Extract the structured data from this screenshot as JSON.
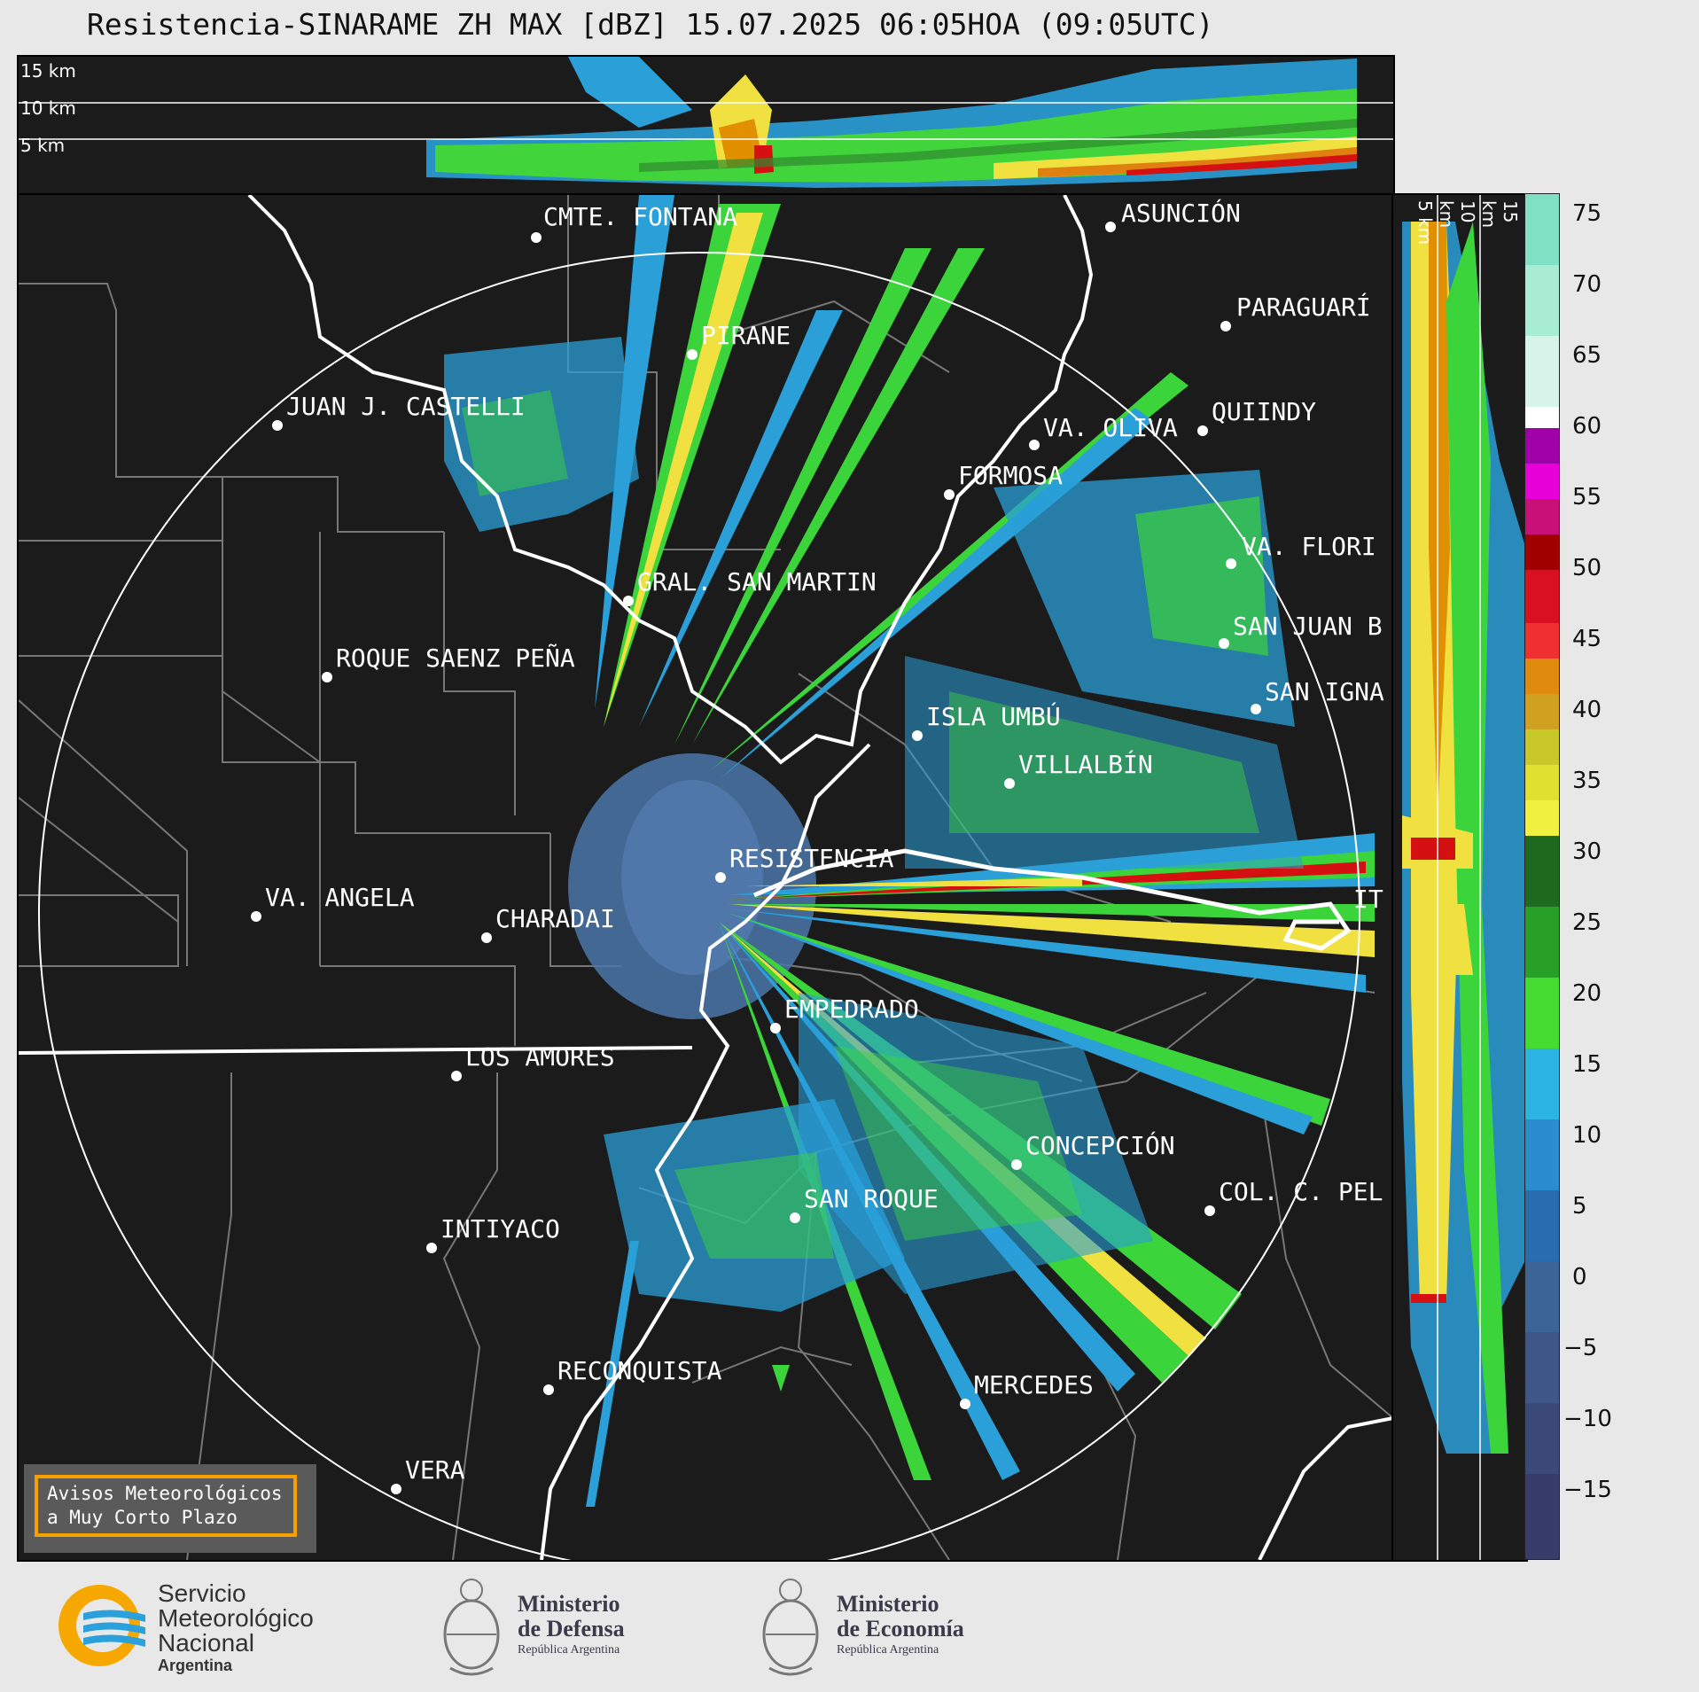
{
  "title": "Resistencia-SINARAME ZH MAX [dBZ] 15.07.2025 06:05HOA (09:05UTC)",
  "top_panel": {
    "height_labels": [
      "15 km",
      "10 km",
      "5 km"
    ]
  },
  "side_panel": {
    "height_labels": [
      "5 km",
      "10 km",
      "15 km"
    ]
  },
  "colorbar": {
    "ticks": [
      "75",
      "70",
      "65",
      "60",
      "55",
      "50",
      "45",
      "40",
      "35",
      "30",
      "25",
      "20",
      "15",
      "10",
      "5",
      "0",
      "−5",
      "−10",
      "−15"
    ],
    "unit": "dBZ"
  },
  "cities": [
    {
      "name": "CMTE. FONTANA"
    },
    {
      "name": "ASUNCIÓN"
    },
    {
      "name": "PARAGUARÍ"
    },
    {
      "name": "PIRANE"
    },
    {
      "name": "JUAN J. CASTELLI"
    },
    {
      "name": "VA. OLIVA"
    },
    {
      "name": "QUIINDY"
    },
    {
      "name": "FORMOSA"
    },
    {
      "name": "VA. FLORI"
    },
    {
      "name": "GRAL. SAN MARTIN"
    },
    {
      "name": "SAN JUAN B"
    },
    {
      "name": "ROQUE SAENZ PEÑA"
    },
    {
      "name": "SAN IGNA"
    },
    {
      "name": "ISLA UMBÚ"
    },
    {
      "name": "VILLALBÍN"
    },
    {
      "name": "RESISTENCIA"
    },
    {
      "name": "IT"
    },
    {
      "name": "VA. ANGELA"
    },
    {
      "name": "CHARADAI"
    },
    {
      "name": "EMPEDRADO"
    },
    {
      "name": "LOS AMORES"
    },
    {
      "name": "CONCEPCIÓN"
    },
    {
      "name": "COL. C. PEL"
    },
    {
      "name": "SAN ROQUE"
    },
    {
      "name": "INTIYACO"
    },
    {
      "name": "RECONQUISTA"
    },
    {
      "name": "MERCEDES"
    },
    {
      "name": "VERA"
    }
  ],
  "aviso": {
    "line1": "Avisos Meteorológicos",
    "line2": "a Muy Corto Plazo"
  },
  "footer": {
    "smn": {
      "line1": "Servicio",
      "line2": "Meteorológico",
      "line3": "Nacional",
      "line4": "Argentina"
    },
    "defensa": {
      "line1": "Ministerio",
      "line2": "de Defensa",
      "line3": "República Argentina"
    },
    "economia": {
      "line1": "Ministerio",
      "line2": "de Economía",
      "line3": "República Argentina"
    }
  }
}
